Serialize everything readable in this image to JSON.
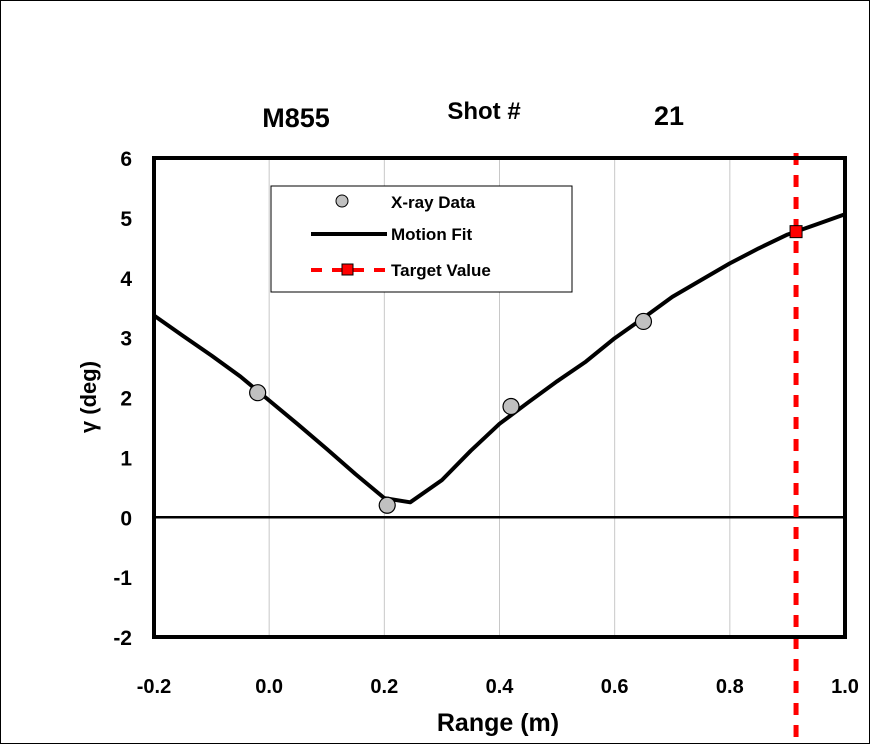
{
  "header": {
    "left": "M855",
    "middle": "Shot #",
    "right": "21"
  },
  "chart_data": {
    "type": "line",
    "xlabel": "Range (m)",
    "ylabel": "γ (deg)",
    "xlim": [
      -0.2,
      1.0
    ],
    "ylim": [
      -2,
      6
    ],
    "x_ticks": [
      "-0.2",
      "0.0",
      "0.2",
      "0.4",
      "0.6",
      "0.8",
      "1.0"
    ],
    "y_ticks": [
      "6",
      "5",
      "4",
      "3",
      "2",
      "1",
      "0",
      "-1",
      "-2"
    ],
    "x_tick_values": [
      -0.2,
      0.0,
      0.2,
      0.4,
      0.6,
      0.8,
      1.0
    ],
    "y_tick_values": [
      6,
      5,
      4,
      3,
      2,
      1,
      0,
      -1,
      -2
    ],
    "grid": "vertical",
    "legend_position": "top-left",
    "legend": [
      "X-ray Data",
      "Motion Fit",
      "Target Value"
    ],
    "series": [
      {
        "name": "X-ray Data",
        "kind": "scatter",
        "color": "#c0c0c0",
        "x": [
          -0.02,
          0.205,
          0.42,
          0.65
        ],
        "y": [
          2.08,
          0.2,
          1.85,
          3.27
        ]
      },
      {
        "name": "Motion Fit",
        "kind": "line",
        "color": "#000000",
        "x": [
          -0.2,
          -0.15,
          -0.1,
          -0.05,
          0.0,
          0.05,
          0.1,
          0.15,
          0.2,
          0.245,
          0.3,
          0.35,
          0.4,
          0.45,
          0.5,
          0.55,
          0.6,
          0.65,
          0.7,
          0.75,
          0.8,
          0.85,
          0.9,
          0.95,
          1.0
        ],
        "y": [
          3.37,
          3.03,
          2.7,
          2.35,
          1.95,
          1.55,
          1.14,
          0.72,
          0.32,
          0.25,
          0.62,
          1.11,
          1.56,
          1.92,
          2.27,
          2.6,
          2.99,
          3.33,
          3.68,
          3.96,
          4.24,
          4.49,
          4.72,
          4.89,
          5.06
        ]
      },
      {
        "name": "Target Value",
        "kind": "vline",
        "color": "#ff0000",
        "x": 0.915,
        "marker_y": 4.77
      }
    ],
    "reference_line_y": 0
  }
}
